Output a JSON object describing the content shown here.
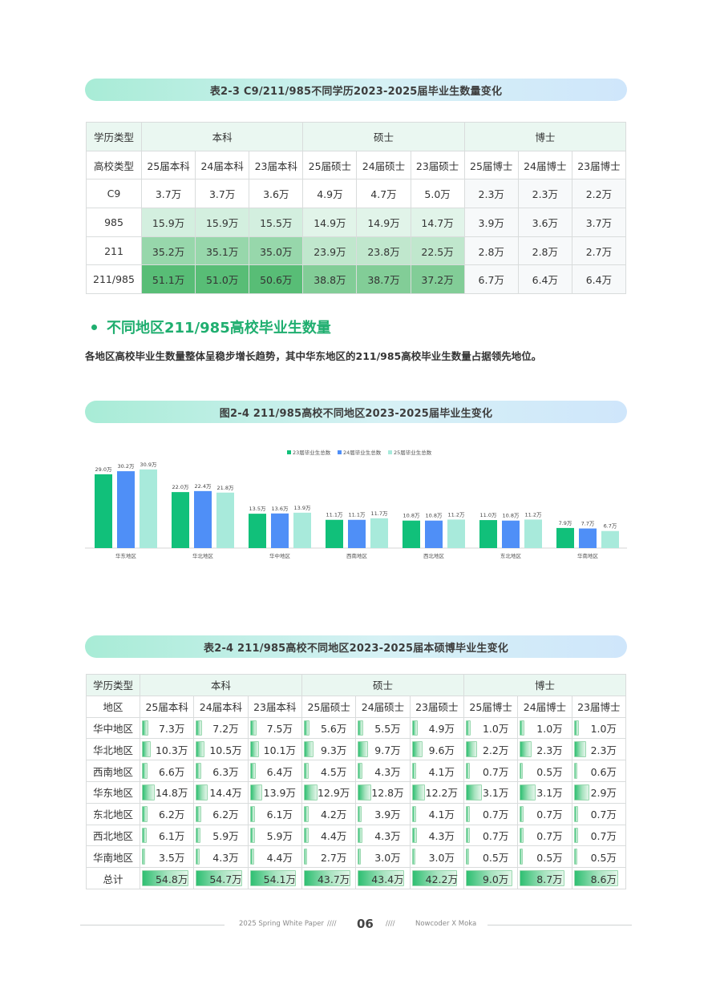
{
  "table23": {
    "title": "表2-3  C9/211/985不同学历2023-2025届毕业生数量变化",
    "header1": {
      "label": "学历类型",
      "groups": [
        "本科",
        "硕士",
        "博士"
      ]
    },
    "header2": [
      "高校类型",
      "25届本科",
      "24届本科",
      "23届本科",
      "25届硕士",
      "24届硕士",
      "23届硕士",
      "25届博士",
      "24届博士",
      "23届博士"
    ],
    "rows": [
      {
        "name": "C9",
        "values": [
          "3.7万",
          "3.7万",
          "3.6万",
          "4.9万",
          "4.7万",
          "5.0万",
          "2.3万",
          "2.3万",
          "2.2万"
        ]
      },
      {
        "name": "985",
        "values": [
          "15.9万",
          "15.9万",
          "15.5万",
          "14.9万",
          "14.9万",
          "14.7万",
          "3.9万",
          "3.6万",
          "3.7万"
        ]
      },
      {
        "name": "211",
        "values": [
          "35.2万",
          "35.1万",
          "35.0万",
          "23.9万",
          "23.8万",
          "22.5万",
          "2.8万",
          "2.8万",
          "2.7万"
        ]
      },
      {
        "name": "211/985",
        "values": [
          "51.1万",
          "51.0万",
          "50.6万",
          "38.8万",
          "38.7万",
          "37.2万",
          "6.7万",
          "6.4万",
          "6.4万"
        ]
      }
    ],
    "heat_colors": {
      "C9": "#ffffff",
      "985": [
        "#d3efdf",
        "#d3efdf",
        "#d3efdf",
        "#e1f4e9",
        "#e1f4e9",
        "#e1f4e9"
      ],
      "211": [
        "#97d7ab",
        "#97d7ab",
        "#97d7ab",
        "#c0e7cd",
        "#c0e7cd",
        "#c0e7cd"
      ],
      "211/985": [
        "#58bd76",
        "#58bd76",
        "#58bd76",
        "#82cd97",
        "#82cd97",
        "#82cd97"
      ]
    }
  },
  "section": {
    "heading": "不同地区211/985高校毕业生数量",
    "paragraph": "各地区高校毕业生数量整体呈稳步增长趋势，其中华东地区的211/985高校毕业生数量占据领先地位。"
  },
  "figure24": {
    "title": "图2-4 211/985高校不同地区2023-2025届毕业生变化"
  },
  "chart_data": {
    "type": "bar",
    "categories": [
      "华东地区",
      "华北地区",
      "华中地区",
      "西南地区",
      "西北地区",
      "东北地区",
      "华南地区"
    ],
    "series": [
      {
        "name": "23届毕业生总数",
        "values": [
          29.0,
          22.0,
          13.5,
          11.1,
          10.8,
          11.0,
          7.9
        ],
        "labels": [
          "29.0万",
          "22.0万",
          "13.5万",
          "11.1万",
          "10.8万",
          "11.0万",
          "7.9万"
        ],
        "color": "#11c07a"
      },
      {
        "name": "24届毕业生总数",
        "values": [
          30.2,
          22.4,
          13.6,
          11.1,
          10.8,
          10.8,
          7.7
        ],
        "labels": [
          "30.2万",
          "22.4万",
          "13.6万",
          "11.1万",
          "10.8万",
          "10.8万",
          "7.7万"
        ],
        "color": "#4f8ff7"
      },
      {
        "name": "25届毕业生总数",
        "values": [
          30.9,
          21.8,
          13.9,
          11.7,
          11.2,
          11.2,
          6.7
        ],
        "labels": [
          "30.9万",
          "21.8万",
          "13.9万",
          "11.7万",
          "11.2万",
          "11.2万",
          "6.7万"
        ],
        "color": "#a8eadb"
      }
    ],
    "legend_position": "top-center",
    "grid": false
  },
  "table24": {
    "title": "表2-4  211/985高校不同地区2023-2025届本硕博毕业生变化",
    "header1": {
      "label": "学历类型",
      "groups": [
        "本科",
        "硕士",
        "博士"
      ]
    },
    "header2": [
      "地区",
      "25届本科",
      "24届本科",
      "23届本科",
      "25届硕士",
      "24届硕士",
      "23届硕士",
      "25届博士",
      "24届博士",
      "23届博士"
    ],
    "rows": [
      {
        "name": "华中地区",
        "values": [
          "7.3万",
          "7.2万",
          "7.5万",
          "5.6万",
          "5.5万",
          "4.9万",
          "1.0万",
          "1.0万",
          "1.0万"
        ],
        "nums": [
          7.3,
          7.2,
          7.5,
          5.6,
          5.5,
          4.9,
          1.0,
          1.0,
          1.0
        ]
      },
      {
        "name": "华北地区",
        "values": [
          "10.3万",
          "10.5万",
          "10.1万",
          "9.3万",
          "9.7万",
          "9.6万",
          "2.2万",
          "2.3万",
          "2.3万"
        ],
        "nums": [
          10.3,
          10.5,
          10.1,
          9.3,
          9.7,
          9.6,
          2.2,
          2.3,
          2.3
        ]
      },
      {
        "name": "西南地区",
        "values": [
          "6.6万",
          "6.3万",
          "6.4万",
          "4.5万",
          "4.3万",
          "4.1万",
          "0.7万",
          "0.5万",
          "0.6万"
        ],
        "nums": [
          6.6,
          6.3,
          6.4,
          4.5,
          4.3,
          4.1,
          0.7,
          0.5,
          0.6
        ]
      },
      {
        "name": "华东地区",
        "values": [
          "14.8万",
          "14.4万",
          "13.9万",
          "12.9万",
          "12.8万",
          "12.2万",
          "3.1万",
          "3.1万",
          "2.9万"
        ],
        "nums": [
          14.8,
          14.4,
          13.9,
          12.9,
          12.8,
          12.2,
          3.1,
          3.1,
          2.9
        ]
      },
      {
        "name": "东北地区",
        "values": [
          "6.2万",
          "6.2万",
          "6.1万",
          "4.2万",
          "3.9万",
          "4.1万",
          "0.7万",
          "0.7万",
          "0.7万"
        ],
        "nums": [
          6.2,
          6.2,
          6.1,
          4.2,
          3.9,
          4.1,
          0.7,
          0.7,
          0.7
        ]
      },
      {
        "name": "西北地区",
        "values": [
          "6.1万",
          "5.9万",
          "5.9万",
          "4.4万",
          "4.3万",
          "4.3万",
          "0.7万",
          "0.7万",
          "0.7万"
        ],
        "nums": [
          6.1,
          5.9,
          5.9,
          4.4,
          4.3,
          4.3,
          0.7,
          0.7,
          0.7
        ]
      },
      {
        "name": "华南地区",
        "values": [
          "3.5万",
          "4.3万",
          "4.4万",
          "2.7万",
          "3.0万",
          "3.0万",
          "0.5万",
          "0.5万",
          "0.5万"
        ],
        "nums": [
          3.5,
          4.3,
          4.4,
          2.7,
          3.0,
          3.0,
          0.5,
          0.5,
          0.5
        ]
      },
      {
        "name": "总计",
        "values": [
          "54.8万",
          "54.7万",
          "54.1万",
          "43.7万",
          "43.4万",
          "42.2万",
          "9.0万",
          "8.7万",
          "8.6万"
        ],
        "nums": [
          54.8,
          54.7,
          54.1,
          43.7,
          43.4,
          42.2,
          9.0,
          8.7,
          8.6
        ]
      }
    ]
  },
  "footer": {
    "left": "2025 Spring White Paper",
    "sep": "////",
    "page": "06",
    "right": "Nowcoder  X  Moka"
  }
}
